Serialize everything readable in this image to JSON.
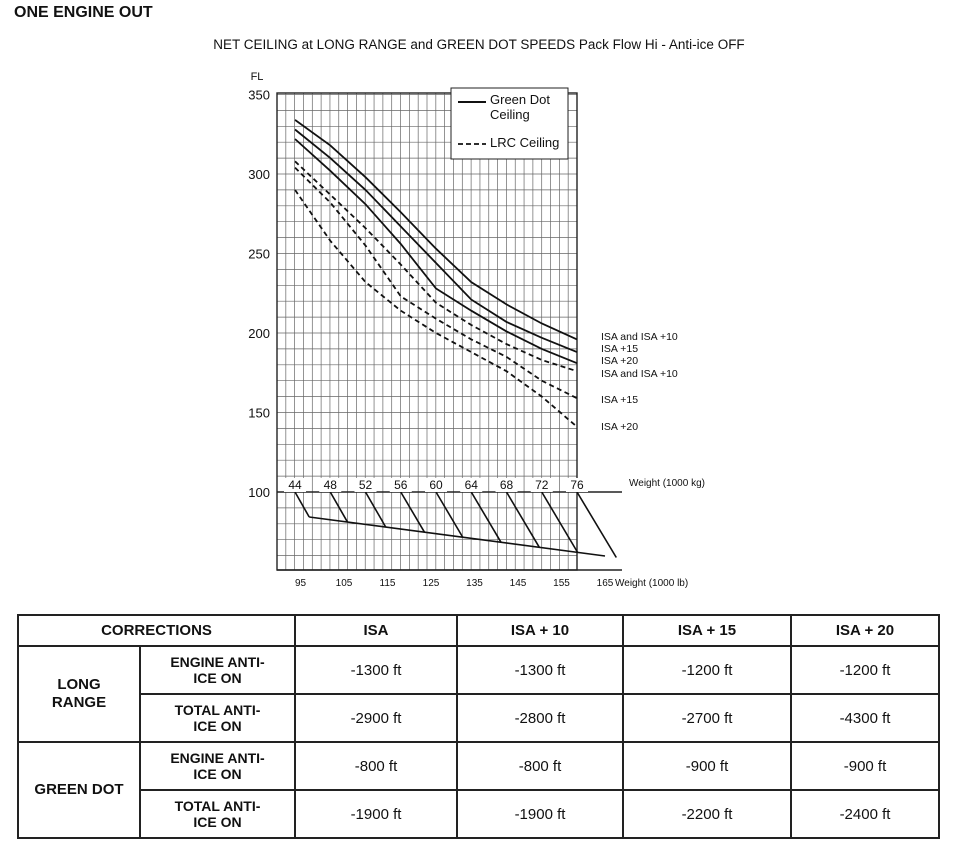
{
  "heading": "ONE ENGINE OUT",
  "subtitle": "NET CEILING at LONG RANGE and GREEN DOT SPEEDS Pack Flow Hi - Anti-ice OFF",
  "chart_data": {
    "type": "line",
    "ylabel": "FL",
    "yticks": [
      100,
      150,
      200,
      250,
      300,
      350
    ],
    "ylim": [
      100,
      350
    ],
    "kg_label": "Weight (1000 kg)",
    "kg_ticks": [
      44,
      48,
      52,
      56,
      60,
      64,
      68,
      72,
      76
    ],
    "lb_label": "Weight (1000 lb)",
    "lb_ticks": [
      95,
      105,
      115,
      125,
      135,
      145,
      155,
      165
    ],
    "grid": true,
    "legend": {
      "placement": "top-right",
      "items": [
        {
          "label": "Green Dot Ceiling",
          "style": "solid"
        },
        {
          "label": "LRC Ceiling",
          "style": "dashed"
        }
      ]
    },
    "series": [
      {
        "name": "ISA and ISA +10",
        "group": "Green Dot Ceiling",
        "style": "solid",
        "x": [
          44,
          48,
          52,
          56,
          60,
          64,
          68,
          72,
          76
        ],
        "y": [
          334,
          318,
          298,
          276,
          253,
          232,
          218,
          206,
          196
        ]
      },
      {
        "name": "ISA +15",
        "group": "Green Dot Ceiling",
        "style": "solid",
        "x": [
          44,
          48,
          52,
          56,
          60,
          64,
          68,
          72,
          76
        ],
        "y": [
          328,
          310,
          290,
          267,
          244,
          221,
          207,
          197,
          188
        ]
      },
      {
        "name": "ISA +20",
        "group": "Green Dot Ceiling",
        "style": "solid",
        "x": [
          44,
          48,
          52,
          56,
          60,
          64,
          68,
          72,
          76
        ],
        "y": [
          322,
          302,
          281,
          256,
          228,
          214,
          201,
          190,
          181
        ]
      },
      {
        "name": "ISA and ISA +10",
        "group": "LRC Ceiling",
        "style": "dashed",
        "x": [
          44,
          48,
          52,
          56,
          60,
          64,
          68,
          72,
          76
        ],
        "y": [
          308,
          287,
          266,
          243,
          219,
          205,
          193,
          183,
          176
        ]
      },
      {
        "name": "ISA +15",
        "group": "LRC Ceiling",
        "style": "dashed",
        "x": [
          44,
          48,
          52,
          56,
          60,
          64,
          68,
          72,
          76
        ],
        "y": [
          304,
          282,
          255,
          223,
          209,
          196,
          185,
          170,
          159
        ]
      },
      {
        "name": "ISA +20",
        "group": "LRC Ceiling",
        "style": "dashed",
        "x": [
          44,
          48,
          52,
          56,
          60,
          64,
          68,
          72,
          76
        ],
        "y": [
          290,
          258,
          232,
          214,
          200,
          188,
          176,
          160,
          141
        ]
      }
    ],
    "annotations": [
      "ISA and ISA +10",
      "ISA +15",
      "ISA +20",
      "ISA and ISA +10",
      "ISA +15",
      "ISA +20"
    ],
    "conversion": {
      "kg": [
        44,
        48,
        52,
        56,
        60,
        64,
        68,
        72,
        76
      ],
      "lb": [
        97.0,
        105.8,
        114.6,
        123.5,
        132.3,
        141.1,
        149.9,
        158.7,
        167.6
      ],
      "baseline_lb": [
        97.0,
        165
      ]
    }
  },
  "table": {
    "corrections_label": "CORRECTIONS",
    "columns": [
      "ISA",
      "ISA + 10",
      "ISA + 15",
      "ISA + 20"
    ],
    "groups": [
      {
        "name_lines": [
          "LONG",
          "RANGE"
        ],
        "rows": [
          {
            "label_lines": [
              "ENGINE ANTI-",
              "ICE ON"
            ],
            "values": [
              "-1300 ft",
              "-1300 ft",
              "-1200 ft",
              "-1200 ft"
            ]
          },
          {
            "label_lines": [
              "TOTAL ANTI-",
              "ICE ON"
            ],
            "values": [
              "-2900 ft",
              "-2800 ft",
              "-2700 ft",
              "-4300 ft"
            ]
          }
        ]
      },
      {
        "name_lines": [
          "GREEN DOT"
        ],
        "rows": [
          {
            "label_lines": [
              "ENGINE ANTI-",
              "ICE ON"
            ],
            "values": [
              "-800 ft",
              "-800 ft",
              "-900 ft",
              "-900 ft"
            ]
          },
          {
            "label_lines": [
              "TOTAL ANTI-",
              "ICE ON"
            ],
            "values": [
              "-1900 ft",
              "-1900 ft",
              "-2200 ft",
              "-2400 ft"
            ]
          }
        ]
      }
    ]
  }
}
